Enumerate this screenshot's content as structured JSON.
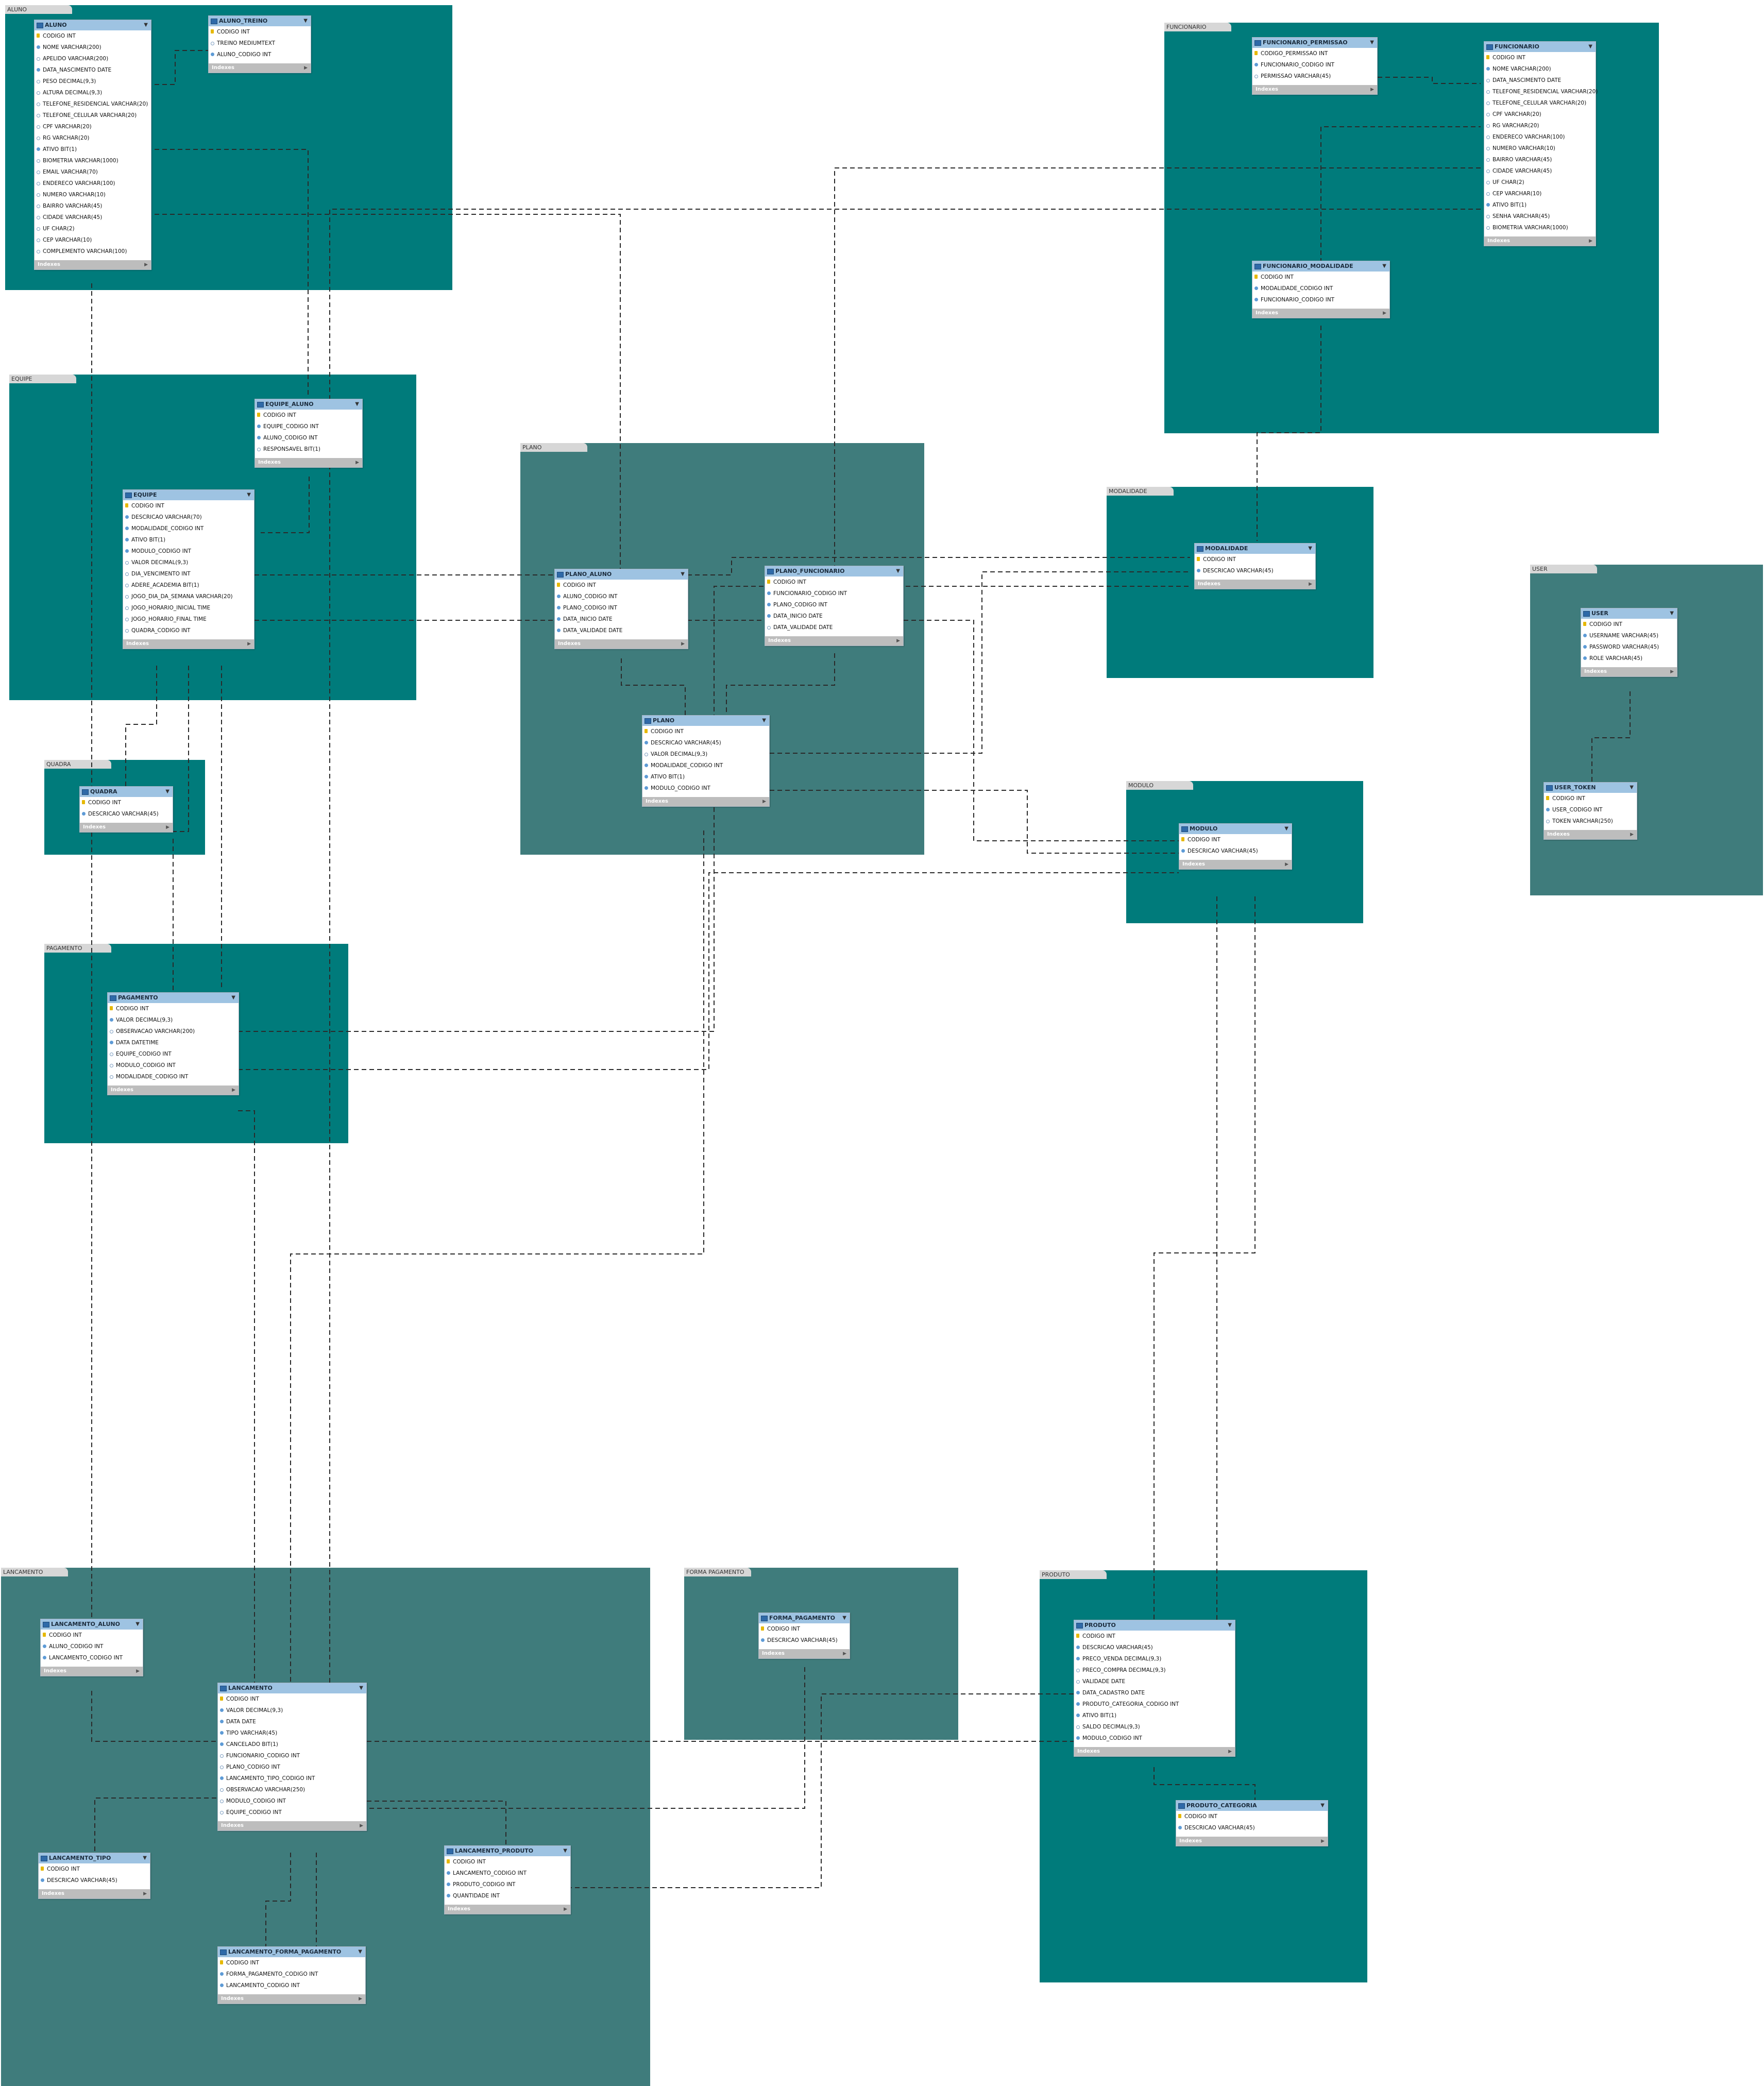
{
  "colors": {
    "layer_teal": "#007b7b",
    "layer_slate": "#3f7c7c",
    "header": "#9ec3e2",
    "footer": "#bdbdbd"
  },
  "layers": [
    {
      "id": "aluno",
      "label": "ALUNO",
      "color": "#007b7b"
    },
    {
      "id": "funcionario",
      "label": "FUNCIONARIO",
      "color": "#007b7b"
    },
    {
      "id": "equipe",
      "label": "EQUIPE",
      "color": "#007b7b"
    },
    {
      "id": "plano",
      "label": "PLANO",
      "color": "#3f7c7c"
    },
    {
      "id": "modalidade",
      "label": "MODALIDADE",
      "color": "#007b7b"
    },
    {
      "id": "user",
      "label": "USER",
      "color": "#3f7c7c"
    },
    {
      "id": "quadra",
      "label": "QUADRA",
      "color": "#007b7b"
    },
    {
      "id": "modulo",
      "label": "MODULO",
      "color": "#007b7b"
    },
    {
      "id": "pagamento",
      "label": "PAGAMENTO",
      "color": "#007b7b"
    },
    {
      "id": "lancamento",
      "label": "LANCAMENTO",
      "color": "#3f7c7c"
    },
    {
      "id": "forma_pagamento",
      "label": "FORMA PAGAMENTO",
      "color": "#3f7c7c"
    },
    {
      "id": "produto",
      "label": "PRODUTO",
      "color": "#007b7b"
    }
  ],
  "indexes_label": "Indexes",
  "tables": [
    {
      "id": "aluno",
      "name": "ALUNO",
      "columns": [
        {
          "t": "pk",
          "text": "CODIGO INT"
        },
        {
          "t": "nn",
          "text": "NOME VARCHAR(200)"
        },
        {
          "t": "nl",
          "text": "APELIDO VARCHAR(200)"
        },
        {
          "t": "nn",
          "text": "DATA_NASCIMENTO DATE"
        },
        {
          "t": "nl",
          "text": "PESO DECIMAL(9,3)"
        },
        {
          "t": "nl",
          "text": "ALTURA DECIMAL(9,3)"
        },
        {
          "t": "nl",
          "text": "TELEFONE_RESIDENCIAL VARCHAR(20)"
        },
        {
          "t": "nl",
          "text": "TELEFONE_CELULAR VARCHAR(20)"
        },
        {
          "t": "nl",
          "text": "CPF VARCHAR(20)"
        },
        {
          "t": "nl",
          "text": "RG VARCHAR(20)"
        },
        {
          "t": "nn",
          "text": "ATIVO BIT(1)"
        },
        {
          "t": "nl",
          "text": "BIOMETRIA VARCHAR(1000)"
        },
        {
          "t": "nl",
          "text": "EMAIL VARCHAR(70)"
        },
        {
          "t": "nl",
          "text": "ENDERECO VARCHAR(100)"
        },
        {
          "t": "nl",
          "text": "NUMERO VARCHAR(10)"
        },
        {
          "t": "nl",
          "text": "BAIRRO VARCHAR(45)"
        },
        {
          "t": "nl",
          "text": "CIDADE VARCHAR(45)"
        },
        {
          "t": "nl",
          "text": "UF CHAR(2)"
        },
        {
          "t": "nl",
          "text": "CEP VARCHAR(10)"
        },
        {
          "t": "nl",
          "text": "COMPLEMENTO VARCHAR(100)"
        }
      ]
    },
    {
      "id": "aluno_treino",
      "name": "ALUNO_TREINO",
      "columns": [
        {
          "t": "pk",
          "text": "CODIGO INT"
        },
        {
          "t": "nl",
          "text": "TREINO MEDIUMTEXT"
        },
        {
          "t": "nn",
          "text": "ALUNO_CODIGO INT"
        }
      ]
    },
    {
      "id": "funcionario_permissao",
      "name": "FUNCIONARIO_PERMISSAO",
      "columns": [
        {
          "t": "pk",
          "text": "CODIGO_PERMISSAO INT"
        },
        {
          "t": "nn",
          "text": "FUNCIONARIO_CODIGO INT"
        },
        {
          "t": "nl",
          "text": "PERMISSAO VARCHAR(45)"
        }
      ]
    },
    {
      "id": "funcionario",
      "name": "FUNCIONARIO",
      "columns": [
        {
          "t": "pk",
          "text": "CODIGO INT"
        },
        {
          "t": "nn",
          "text": "NOME VARCHAR(200)"
        },
        {
          "t": "nl",
          "text": "DATA_NASCIMENTO DATE"
        },
        {
          "t": "nl",
          "text": "TELEFONE_RESIDENCIAL VARCHAR(20)"
        },
        {
          "t": "nl",
          "text": "TELEFONE_CELULAR VARCHAR(20)"
        },
        {
          "t": "nl",
          "text": "CPF VARCHAR(20)"
        },
        {
          "t": "nl",
          "text": "RG VARCHAR(20)"
        },
        {
          "t": "nl",
          "text": "ENDERECO VARCHAR(100)"
        },
        {
          "t": "nl",
          "text": "NUMERO VARCHAR(10)"
        },
        {
          "t": "nl",
          "text": "BAIRRO VARCHAR(45)"
        },
        {
          "t": "nl",
          "text": "CIDADE VARCHAR(45)"
        },
        {
          "t": "nl",
          "text": "UF CHAR(2)"
        },
        {
          "t": "nl",
          "text": "CEP VARCHAR(10)"
        },
        {
          "t": "nn",
          "text": "ATIVO BIT(1)"
        },
        {
          "t": "nl",
          "text": "SENHA VARCHAR(45)"
        },
        {
          "t": "nl",
          "text": "BIOMETRIA VARCHAR(1000)"
        }
      ]
    },
    {
      "id": "funcionario_modalidade",
      "name": "FUNCIONARIO_MODALIDADE",
      "columns": [
        {
          "t": "pk",
          "text": "CODIGO INT"
        },
        {
          "t": "nn",
          "text": "MODALIDADE_CODIGO INT"
        },
        {
          "t": "nn",
          "text": "FUNCIONARIO_CODIGO INT"
        }
      ]
    },
    {
      "id": "equipe_aluno",
      "name": "EQUIPE_ALUNO",
      "columns": [
        {
          "t": "pk",
          "text": "CODIGO INT"
        },
        {
          "t": "nn",
          "text": "EQUIPE_CODIGO INT"
        },
        {
          "t": "nn",
          "text": "ALUNO_CODIGO INT"
        },
        {
          "t": "nl",
          "text": "RESPONSAVEL BIT(1)"
        }
      ]
    },
    {
      "id": "equipe",
      "name": "EQUIPE",
      "columns": [
        {
          "t": "pk",
          "text": "CODIGO INT"
        },
        {
          "t": "nn",
          "text": "DESCRICAO VARCHAR(70)"
        },
        {
          "t": "nn",
          "text": "MODALIDADE_CODIGO INT"
        },
        {
          "t": "nn",
          "text": "ATIVO BIT(1)"
        },
        {
          "t": "nn",
          "text": "MODULO_CODIGO INT"
        },
        {
          "t": "nl",
          "text": "VALOR DECIMAL(9,3)"
        },
        {
          "t": "nl",
          "text": "DIA_VENCIMENTO INT"
        },
        {
          "t": "nl",
          "text": "ADERE_ACADEMIA BIT(1)"
        },
        {
          "t": "nl",
          "text": "JOGO_DIA_DA_SEMANA VARCHAR(20)"
        },
        {
          "t": "nl",
          "text": "JOGO_HORARIO_INICIAL TIME"
        },
        {
          "t": "nl",
          "text": "JOGO_HORARIO_FINAL TIME"
        },
        {
          "t": "nl",
          "text": "QUADRA_CODIGO INT"
        }
      ]
    },
    {
      "id": "plano_aluno",
      "name": "PLANO_ALUNO",
      "columns": [
        {
          "t": "pk",
          "text": "CODIGO INT"
        },
        {
          "t": "nn",
          "text": "ALUNO_CODIGO INT"
        },
        {
          "t": "nn",
          "text": "PLANO_CODIGO INT"
        },
        {
          "t": "nn",
          "text": "DATA_INICIO DATE"
        },
        {
          "t": "nn",
          "text": "DATA_VALIDADE DATE"
        }
      ]
    },
    {
      "id": "plano_funcionario",
      "name": "PLANO_FUNCIONARIO",
      "columns": [
        {
          "t": "pk",
          "text": "CODIGO INT"
        },
        {
          "t": "nn",
          "text": "FUNCIONARIO_CODIGO INT"
        },
        {
          "t": "nn",
          "text": "PLANO_CODIGO INT"
        },
        {
          "t": "nn",
          "text": "DATA_INICIO DATE"
        },
        {
          "t": "nl",
          "text": "DATA_VALIDADE DATE"
        }
      ]
    },
    {
      "id": "modalidade",
      "name": "MODALIDADE",
      "columns": [
        {
          "t": "pk",
          "text": "CODIGO INT"
        },
        {
          "t": "nn",
          "text": "DESCRICAO VARCHAR(45)"
        }
      ]
    },
    {
      "id": "user",
      "name": "USER",
      "columns": [
        {
          "t": "pk",
          "text": "CODIGO INT"
        },
        {
          "t": "nn",
          "text": "USERNAME VARCHAR(45)"
        },
        {
          "t": "nn",
          "text": "PASSWORD VARCHAR(45)"
        },
        {
          "t": "nn",
          "text": "ROLE VARCHAR(45)"
        }
      ]
    },
    {
      "id": "plano",
      "name": "PLANO",
      "columns": [
        {
          "t": "pk",
          "text": "CODIGO INT"
        },
        {
          "t": "nn",
          "text": "DESCRICAO VARCHAR(45)"
        },
        {
          "t": "nl",
          "text": "VALOR DECIMAL(9,3)"
        },
        {
          "t": "nn",
          "text": "MODALIDADE_CODIGO INT"
        },
        {
          "t": "nn",
          "text": "ATIVO BIT(1)"
        },
        {
          "t": "nn",
          "text": "MODULO_CODIGO INT"
        }
      ]
    },
    {
      "id": "quadra",
      "name": "QUADRA",
      "columns": [
        {
          "t": "pk",
          "text": "CODIGO INT"
        },
        {
          "t": "nn",
          "text": "DESCRICAO VARCHAR(45)"
        }
      ]
    },
    {
      "id": "user_token",
      "name": "USER_TOKEN",
      "columns": [
        {
          "t": "pk",
          "text": "CODIGO INT"
        },
        {
          "t": "nn",
          "text": "USER_CODIGO INT"
        },
        {
          "t": "nl",
          "text": "TOKEN VARCHAR(250)"
        }
      ]
    },
    {
      "id": "modulo",
      "name": "MODULO",
      "columns": [
        {
          "t": "pk",
          "text": "CODIGO INT"
        },
        {
          "t": "nn",
          "text": "DESCRICAO VARCHAR(45)"
        }
      ]
    },
    {
      "id": "pagamento",
      "name": "PAGAMENTO",
      "columns": [
        {
          "t": "pk",
          "text": "CODIGO INT"
        },
        {
          "t": "nn",
          "text": "VALOR DECIMAL(9,3)"
        },
        {
          "t": "nl",
          "text": "OBSERVACAO VARCHAR(200)"
        },
        {
          "t": "nn",
          "text": "DATA DATETIME"
        },
        {
          "t": "nl",
          "text": "EQUIPE_CODIGO INT"
        },
        {
          "t": "nl",
          "text": "MODULO_CODIGO INT"
        },
        {
          "t": "nl",
          "text": "MODALIDADE_CODIGO INT"
        }
      ]
    },
    {
      "id": "lancamento_aluno",
      "name": "LANCAMENTO_ALUNO",
      "columns": [
        {
          "t": "pk",
          "text": "CODIGO INT"
        },
        {
          "t": "nn",
          "text": "ALUNO_CODIGO INT"
        },
        {
          "t": "nn",
          "text": "LANCAMENTO_CODIGO INT"
        }
      ]
    },
    {
      "id": "lancamento",
      "name": "LANCAMENTO",
      "columns": [
        {
          "t": "pk",
          "text": "CODIGO INT"
        },
        {
          "t": "nn",
          "text": "VALOR DECIMAL(9,3)"
        },
        {
          "t": "nn",
          "text": "DATA DATE"
        },
        {
          "t": "nn",
          "text": "TIPO VARCHAR(45)"
        },
        {
          "t": "nn",
          "text": "CANCELADO BIT(1)"
        },
        {
          "t": "nl",
          "text": "FUNCIONARIO_CODIGO INT"
        },
        {
          "t": "nl",
          "text": "PLANO_CODIGO INT"
        },
        {
          "t": "nn",
          "text": "LANCAMENTO_TIPO_CODIGO INT"
        },
        {
          "t": "nl",
          "text": "OBSERVACAO VARCHAR(250)"
        },
        {
          "t": "nl",
          "text": "MODULO_CODIGO INT"
        },
        {
          "t": "nl",
          "text": "EQUIPE_CODIGO INT"
        }
      ]
    },
    {
      "id": "forma_pagamento",
      "name": "FORMA_PAGAMENTO",
      "columns": [
        {
          "t": "pk",
          "text": "CODIGO INT"
        },
        {
          "t": "nn",
          "text": "DESCRICAO VARCHAR(45)"
        }
      ]
    },
    {
      "id": "produto",
      "name": "PRODUTO",
      "columns": [
        {
          "t": "pk",
          "text": "CODIGO INT"
        },
        {
          "t": "nn",
          "text": "DESCRICAO VARCHAR(45)"
        },
        {
          "t": "nn",
          "text": "PRECO_VENDA DECIMAL(9,3)"
        },
        {
          "t": "nl",
          "text": "PRECO_COMPRA DECIMAL(9,3)"
        },
        {
          "t": "nl",
          "text": "VALIDADE DATE"
        },
        {
          "t": "nn",
          "text": "DATA_CADASTRO DATE"
        },
        {
          "t": "nn",
          "text": "PRODUTO_CATEGORIA_CODIGO INT"
        },
        {
          "t": "nn",
          "text": "ATIVO BIT(1)"
        },
        {
          "t": "nl",
          "text": "SALDO DECIMAL(9,3)"
        },
        {
          "t": "nn",
          "text": "MODULO_CODIGO INT"
        }
      ]
    },
    {
      "id": "lancamento_tipo",
      "name": "LANCAMENTO_TIPO",
      "columns": [
        {
          "t": "pk",
          "text": "CODIGO INT"
        },
        {
          "t": "nn",
          "text": "DESCRICAO VARCHAR(45)"
        }
      ]
    },
    {
      "id": "lancamento_produto",
      "name": "LANCAMENTO_PRODUTO",
      "columns": [
        {
          "t": "pk",
          "text": "CODIGO INT"
        },
        {
          "t": "nn",
          "text": "LANCAMENTO_CODIGO INT"
        },
        {
          "t": "nn",
          "text": "PRODUTO_CODIGO INT"
        },
        {
          "t": "nn",
          "text": "QUANTIDADE INT"
        }
      ]
    },
    {
      "id": "produto_categoria",
      "name": "PRODUTO_CATEGORIA",
      "columns": [
        {
          "t": "pk",
          "text": "CODIGO INT"
        },
        {
          "t": "nn",
          "text": "DESCRICAO VARCHAR(45)"
        }
      ]
    },
    {
      "id": "lancamento_forma_pagamento",
      "name": "LANCAMENTO_FORMA_PAGAMENTO",
      "columns": [
        {
          "t": "pk",
          "text": "CODIGO INT"
        },
        {
          "t": "nn",
          "text": "FORMA_PAGAMENTO_CODIGO INT"
        },
        {
          "t": "nn",
          "text": "LANCAMENTO_CODIGO INT"
        }
      ]
    }
  ],
  "relationships": [
    [
      "aluno_treino",
      "aluno"
    ],
    [
      "equipe_aluno",
      "aluno"
    ],
    [
      "equipe_aluno",
      "equipe"
    ],
    [
      "plano_aluno",
      "aluno"
    ],
    [
      "plano_aluno",
      "plano"
    ],
    [
      "plano_funcionario",
      "plano"
    ],
    [
      "plano_funcionario",
      "funcionario"
    ],
    [
      "funcionario_permissao",
      "funcionario"
    ],
    [
      "funcionario_modalidade",
      "funcionario"
    ],
    [
      "funcionario_modalidade",
      "modalidade"
    ],
    [
      "equipe",
      "modalidade"
    ],
    [
      "equipe",
      "modulo"
    ],
    [
      "equipe",
      "quadra"
    ],
    [
      "plano",
      "modalidade"
    ],
    [
      "plano",
      "modulo"
    ],
    [
      "user_token",
      "user"
    ],
    [
      "pagamento",
      "equipe"
    ],
    [
      "pagamento",
      "modulo"
    ],
    [
      "pagamento",
      "modalidade"
    ],
    [
      "lancamento_aluno",
      "aluno"
    ],
    [
      "lancamento_aluno",
      "lancamento"
    ],
    [
      "lancamento",
      "funcionario"
    ],
    [
      "lancamento",
      "plano"
    ],
    [
      "lancamento",
      "lancamento_tipo"
    ],
    [
      "lancamento",
      "modulo"
    ],
    [
      "lancamento",
      "equipe"
    ],
    [
      "lancamento_produto",
      "lancamento"
    ],
    [
      "lancamento_produto",
      "produto"
    ],
    [
      "produto",
      "produto_categoria"
    ],
    [
      "produto",
      "modulo"
    ],
    [
      "lancamento_forma_pagamento",
      "lancamento"
    ],
    [
      "lancamento_forma_pagamento",
      "forma_pagamento"
    ]
  ]
}
